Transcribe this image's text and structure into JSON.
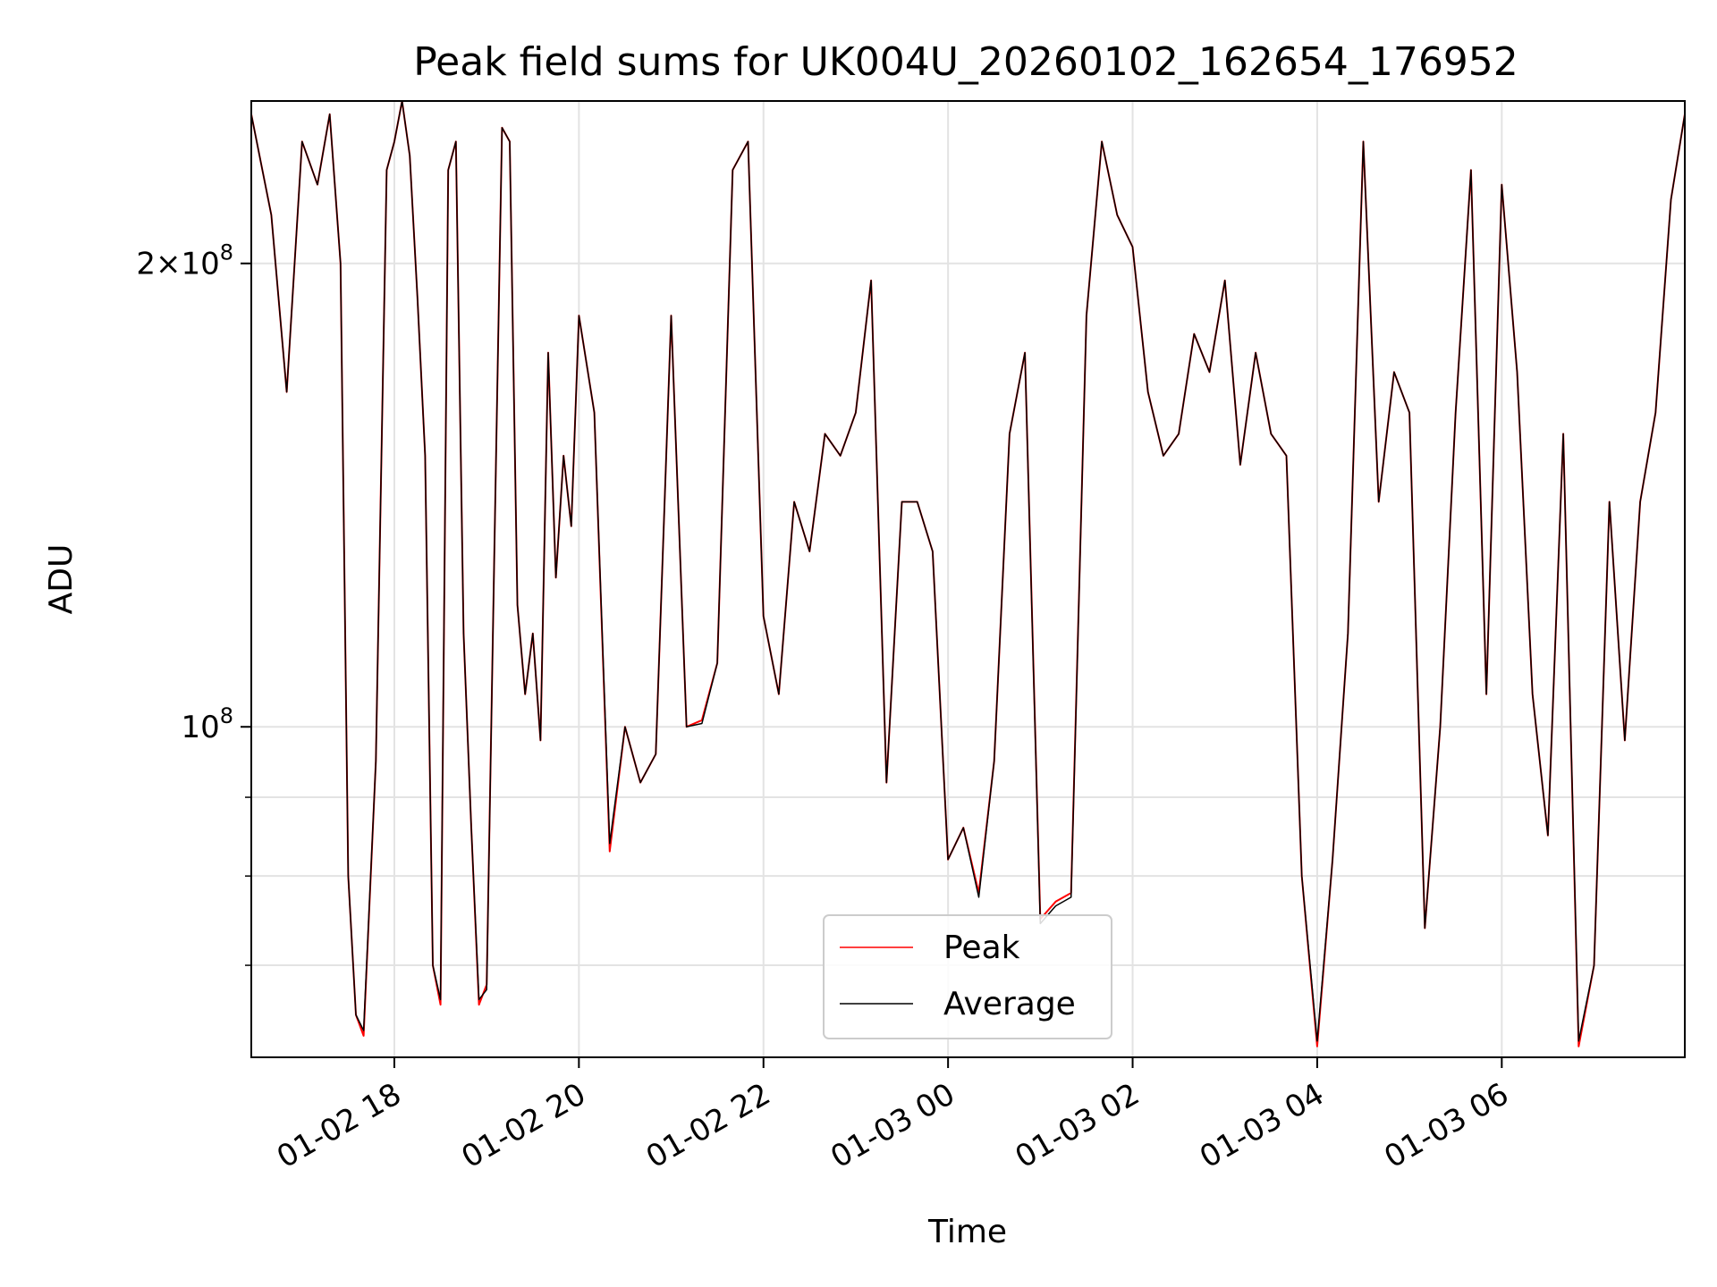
{
  "chart_data": {
    "type": "line",
    "title": "Peak field sums for UK004U_20260102_162654_176952",
    "xlabel": "Time",
    "ylabel": "ADU",
    "yscale": "log",
    "xlim": [
      "2026-01-02 16:27",
      "2026-01-03 07:59"
    ],
    "ylim": [
      61000000,
      255000000
    ],
    "grid": true,
    "legend_position": "lower center",
    "x_ticks": [
      "2026-01-02 18:00",
      "2026-01-02 20:00",
      "2026-01-02 22:00",
      "2026-01-03 00:00",
      "2026-01-03 02:00",
      "2026-01-03 04:00",
      "2026-01-03 06:00"
    ],
    "x_tick_labels": [
      "01-02 18",
      "01-02 20",
      "01-02 22",
      "01-03 00",
      "01-03 02",
      "01-03 04",
      "01-03 06"
    ],
    "y_major_ticks": [
      100000000,
      200000000
    ],
    "y_major_tick_labels": [
      "10^8",
      "2×10^8"
    ],
    "y_minor_ticks": [
      70000000,
      80000000,
      90000000
    ],
    "x": [
      "2026-01-02 16:27",
      "2026-01-02 16:40",
      "2026-01-02 16:50",
      "2026-01-02 17:00",
      "2026-01-02 17:10",
      "2026-01-02 17:18",
      "2026-01-02 17:25",
      "2026-01-02 17:30",
      "2026-01-02 17:35",
      "2026-01-02 17:40",
      "2026-01-02 17:48",
      "2026-01-02 17:55",
      "2026-01-02 18:00",
      "2026-01-02 18:05",
      "2026-01-02 18:10",
      "2026-01-02 18:15",
      "2026-01-02 18:20",
      "2026-01-02 18:25",
      "2026-01-02 18:30",
      "2026-01-02 18:35",
      "2026-01-02 18:40",
      "2026-01-02 18:45",
      "2026-01-02 18:50",
      "2026-01-02 18:55",
      "2026-01-02 19:00",
      "2026-01-02 19:05",
      "2026-01-02 19:10",
      "2026-01-02 19:15",
      "2026-01-02 19:20",
      "2026-01-02 19:25",
      "2026-01-02 19:30",
      "2026-01-02 19:35",
      "2026-01-02 19:40",
      "2026-01-02 19:45",
      "2026-01-02 19:50",
      "2026-01-02 19:55",
      "2026-01-02 20:00",
      "2026-01-02 20:10",
      "2026-01-02 20:20",
      "2026-01-02 20:30",
      "2026-01-02 20:40",
      "2026-01-02 20:50",
      "2026-01-02 21:00",
      "2026-01-02 21:10",
      "2026-01-02 21:20",
      "2026-01-02 21:30",
      "2026-01-02 21:40",
      "2026-01-02 21:50",
      "2026-01-02 22:00",
      "2026-01-02 22:10",
      "2026-01-02 22:20",
      "2026-01-02 22:30",
      "2026-01-02 22:40",
      "2026-01-02 22:50",
      "2026-01-02 23:00",
      "2026-01-02 23:10",
      "2026-01-02 23:20",
      "2026-01-02 23:30",
      "2026-01-02 23:40",
      "2026-01-02 23:50",
      "2026-01-03 00:00",
      "2026-01-03 00:10",
      "2026-01-03 00:20",
      "2026-01-03 00:30",
      "2026-01-03 00:40",
      "2026-01-03 00:50",
      "2026-01-03 01:00",
      "2026-01-03 01:10",
      "2026-01-03 01:20",
      "2026-01-03 01:30",
      "2026-01-03 01:40",
      "2026-01-03 01:50",
      "2026-01-03 02:00",
      "2026-01-03 02:10",
      "2026-01-03 02:20",
      "2026-01-03 02:30",
      "2026-01-03 02:40",
      "2026-01-03 02:50",
      "2026-01-03 03:00",
      "2026-01-03 03:10",
      "2026-01-03 03:20",
      "2026-01-03 03:30",
      "2026-01-03 03:40",
      "2026-01-03 03:50",
      "2026-01-03 04:00",
      "2026-01-03 04:10",
      "2026-01-03 04:20",
      "2026-01-03 04:30",
      "2026-01-03 04:40",
      "2026-01-03 04:50",
      "2026-01-03 05:00",
      "2026-01-03 05:10",
      "2026-01-03 05:20",
      "2026-01-03 05:30",
      "2026-01-03 05:40",
      "2026-01-03 05:50",
      "2026-01-03 06:00",
      "2026-01-03 06:10",
      "2026-01-03 06:20",
      "2026-01-03 06:30",
      "2026-01-03 06:40",
      "2026-01-03 06:50",
      "2026-01-03 07:00",
      "2026-01-03 07:10",
      "2026-01-03 07:20",
      "2026-01-03 07:30",
      "2026-01-03 07:40",
      "2026-01-03 07:50",
      "2026-01-03 07:59"
    ],
    "series": [
      {
        "name": "Peak",
        "color": "#ff0000",
        "values": [
          250000000,
          215000000,
          165000000,
          240000000,
          225000000,
          250000000,
          200000000,
          80000000,
          65000000,
          63000000,
          95000000,
          230000000,
          240000000,
          255000000,
          235000000,
          190000000,
          150000000,
          70000000,
          66000000,
          230000000,
          240000000,
          115000000,
          86000000,
          66000000,
          68000000,
          130000000,
          245000000,
          240000000,
          120000000,
          105000000,
          115000000,
          98000000,
          175000000,
          125000000,
          150000000,
          135000000,
          185000000,
          160000000,
          83000000,
          100000000,
          92000000,
          96000000,
          185000000,
          100000000,
          101000000,
          110000000,
          230000000,
          240000000,
          118000000,
          105000000,
          140000000,
          130000000,
          155000000,
          150000000,
          160000000,
          195000000,
          92000000,
          140000000,
          140000000,
          130000000,
          82000000,
          86000000,
          78000000,
          95000000,
          155000000,
          175000000,
          75000000,
          77000000,
          78000000,
          185000000,
          240000000,
          215000000,
          205000000,
          165000000,
          150000000,
          155000000,
          180000000,
          170000000,
          195000000,
          148000000,
          175000000,
          155000000,
          150000000,
          80000000,
          62000000,
          82000000,
          115000000,
          240000000,
          140000000,
          170000000,
          160000000,
          74000000,
          100000000,
          160000000,
          230000000,
          105000000,
          225000000,
          170000000,
          105000000,
          85000000,
          155000000,
          62000000,
          70000000,
          140000000,
          98000000,
          140000000,
          160000000,
          220000000,
          250000000
        ]
      },
      {
        "name": "Average",
        "color": "#000000",
        "values": [
          250000000,
          215000000,
          165000000,
          240000000,
          225000000,
          250000000,
          200000000,
          80000000,
          65000000,
          63500000,
          95000000,
          230000000,
          240000000,
          255000000,
          235000000,
          190000000,
          150000000,
          70000000,
          66500000,
          230000000,
          240000000,
          115000000,
          86000000,
          66500000,
          67500000,
          130000000,
          245000000,
          240000000,
          120000000,
          105000000,
          115000000,
          98000000,
          175000000,
          125000000,
          150000000,
          135000000,
          185000000,
          160000000,
          84000000,
          100000000,
          92000000,
          96000000,
          185000000,
          100000000,
          100500000,
          110000000,
          230000000,
          240000000,
          118000000,
          105000000,
          140000000,
          130000000,
          155000000,
          150000000,
          160000000,
          195000000,
          92000000,
          140000000,
          140000000,
          130000000,
          82000000,
          86000000,
          77500000,
          95000000,
          155000000,
          175000000,
          74500000,
          76500000,
          77500000,
          185000000,
          240000000,
          215000000,
          205000000,
          165000000,
          150000000,
          155000000,
          180000000,
          170000000,
          195000000,
          148000000,
          175000000,
          155000000,
          150000000,
          80000000,
          62500000,
          82000000,
          115000000,
          240000000,
          140000000,
          170000000,
          160000000,
          74000000,
          100000000,
          160000000,
          230000000,
          105000000,
          225000000,
          170000000,
          105000000,
          85000000,
          155000000,
          62500000,
          70000000,
          140000000,
          98000000,
          140000000,
          160000000,
          220000000,
          250000000
        ]
      }
    ]
  }
}
